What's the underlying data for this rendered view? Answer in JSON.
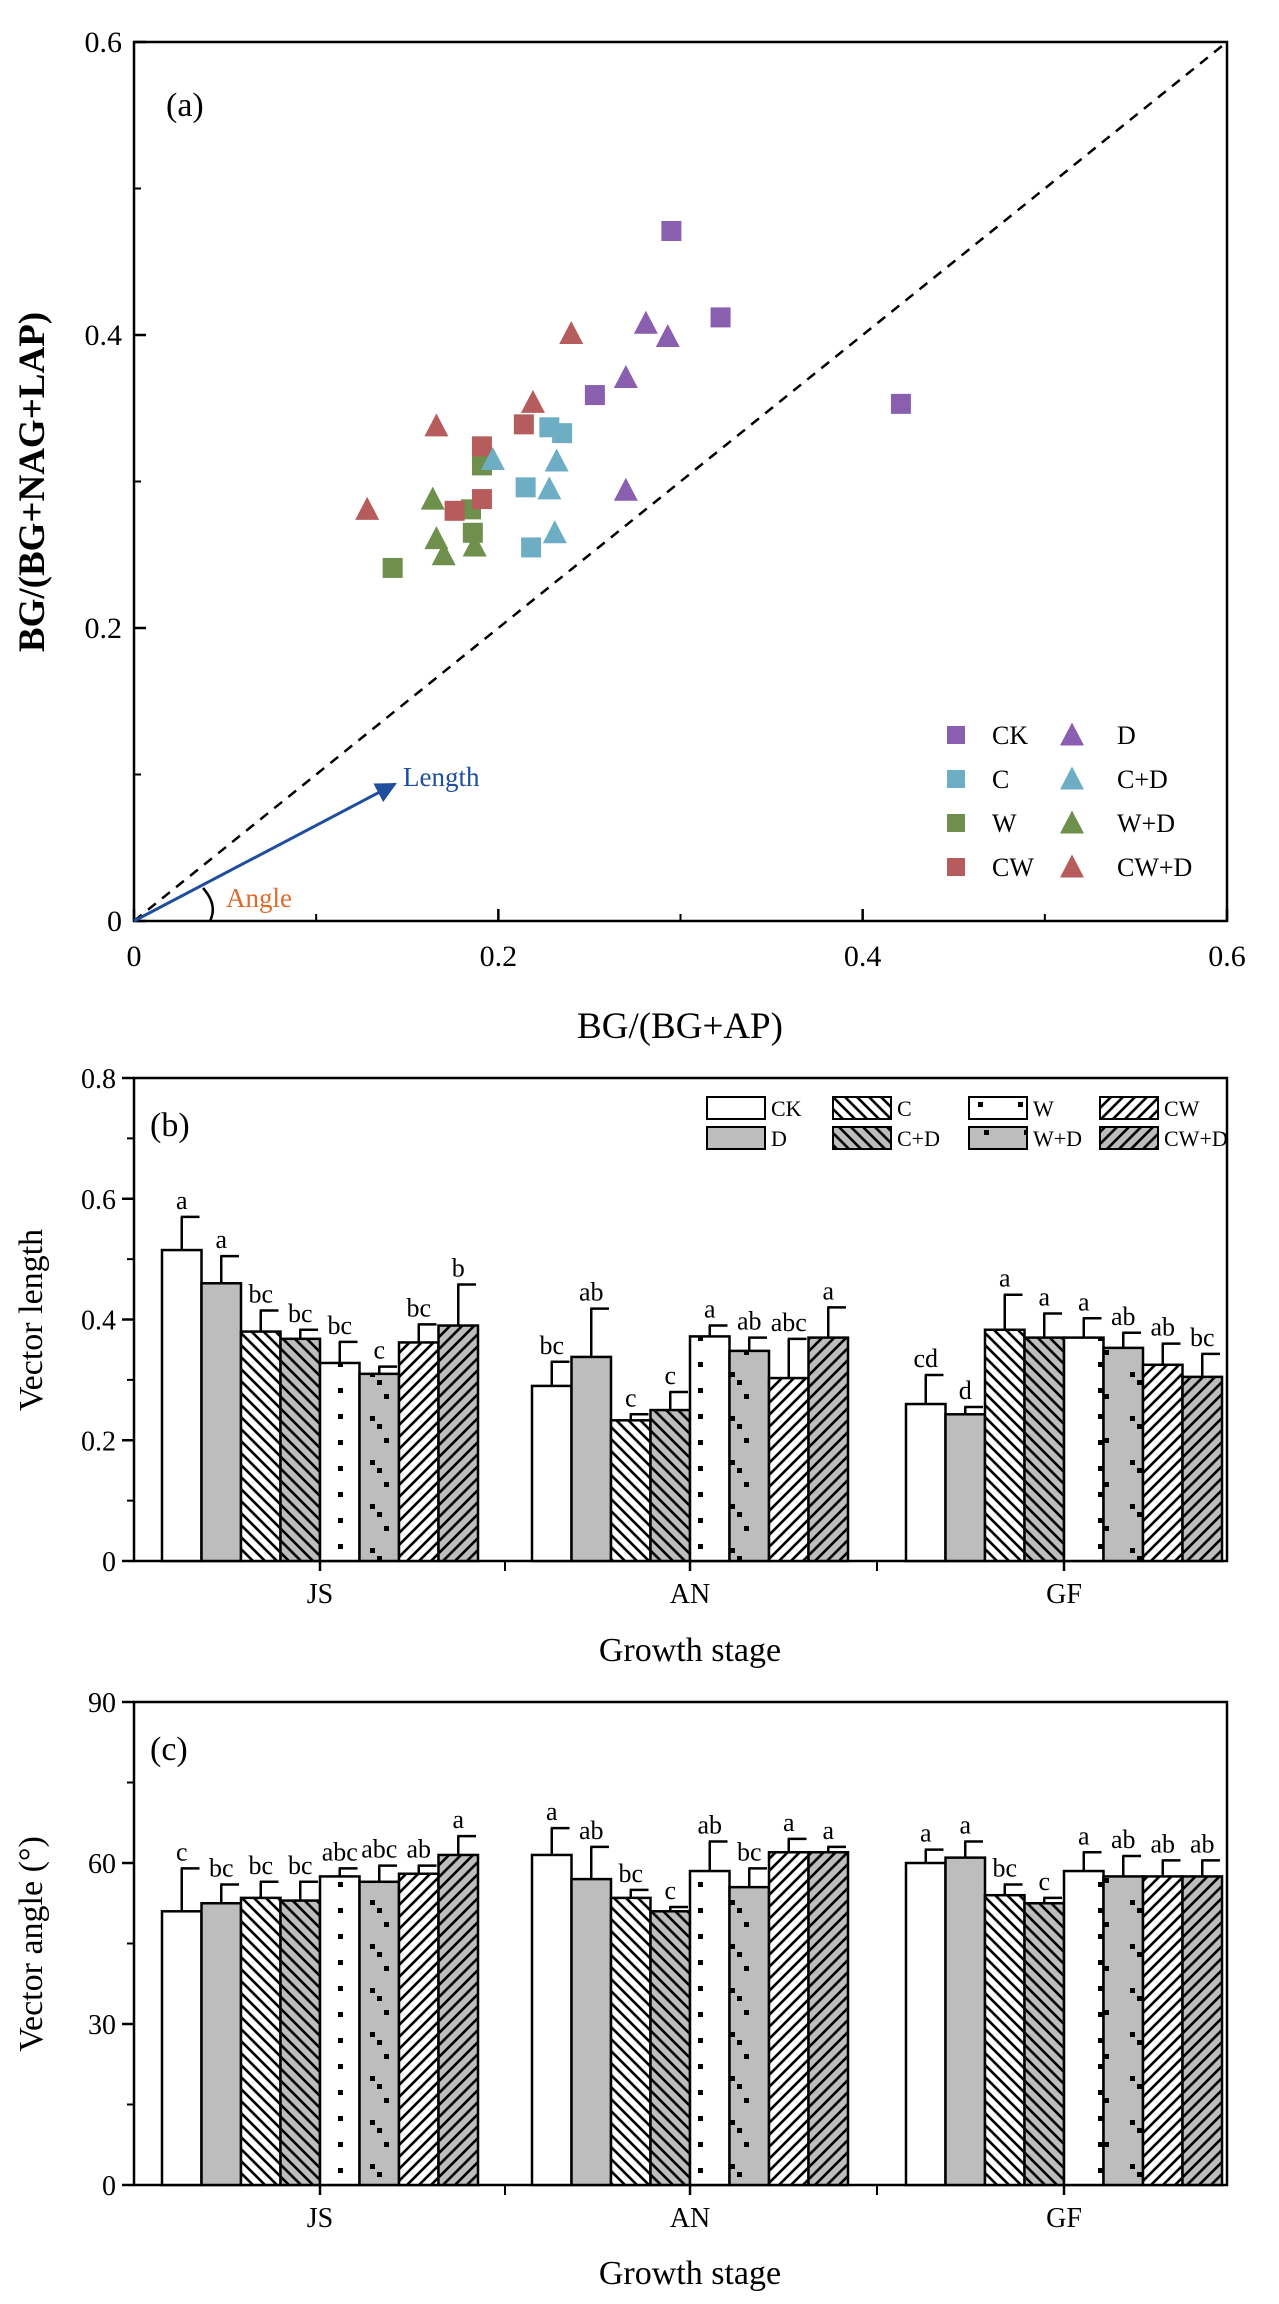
{
  "colors": {
    "CK": "#8a5fb0",
    "C": "#6eaec4",
    "W": "#6f8f4c",
    "CW": "#b65c5c",
    "length_arrow": "#1f4e9e",
    "angle_label": "#e06a2c",
    "bar_white": "#ffffff",
    "bar_grey": "#bdbdbd",
    "axis": "#000000"
  },
  "chart_data": [
    {
      "id": "a",
      "type": "scatter",
      "panel_label": "(a)",
      "xlabel": "BG/(BG+AP)",
      "ylabel": "BG/(BG+NAG+LAP)",
      "xlim": [
        0,
        0.6
      ],
      "ylim": [
        0,
        0.6
      ],
      "xticks": [
        0,
        0.2,
        0.4,
        0.6
      ],
      "xtick_labels": [
        "0",
        "0.2",
        "0.4",
        "0.6"
      ],
      "yticks": [
        0,
        0.2,
        0.4,
        0.6
      ],
      "ytick_labels": [
        "0",
        "0.2",
        "0.4",
        "0.6"
      ],
      "reference_line": "1:1 dashed",
      "annotations": {
        "length": "Length",
        "angle": "Angle"
      },
      "series": [
        {
          "name": "CK",
          "marker": "square",
          "color_key": "CK",
          "points": [
            [
              0.295,
              0.471
            ],
            [
              0.322,
              0.412
            ],
            [
              0.253,
              0.359
            ],
            [
              0.421,
              0.353
            ]
          ]
        },
        {
          "name": "C",
          "marker": "square",
          "color_key": "C",
          "points": [
            [
              0.228,
              0.337
            ],
            [
              0.235,
              0.333
            ],
            [
              0.215,
              0.296
            ],
            [
              0.218,
              0.255
            ]
          ]
        },
        {
          "name": "W",
          "marker": "square",
          "color_key": "W",
          "points": [
            [
              0.191,
              0.311
            ],
            [
              0.185,
              0.281
            ],
            [
              0.186,
              0.265
            ],
            [
              0.142,
              0.241
            ]
          ]
        },
        {
          "name": "CW",
          "marker": "square",
          "color_key": "CW",
          "points": [
            [
              0.191,
              0.324
            ],
            [
              0.214,
              0.339
            ],
            [
              0.191,
              0.288
            ],
            [
              0.176,
              0.28
            ]
          ]
        },
        {
          "name": "D",
          "marker": "triangle",
          "color_key": "CK",
          "points": [
            [
              0.281,
              0.408
            ],
            [
              0.293,
              0.399
            ],
            [
              0.27,
              0.371
            ],
            [
              0.27,
              0.294
            ]
          ]
        },
        {
          "name": "C+D",
          "marker": "triangle",
          "color_key": "C",
          "points": [
            [
              0.197,
              0.315
            ],
            [
              0.232,
              0.314
            ],
            [
              0.228,
              0.295
            ],
            [
              0.231,
              0.265
            ]
          ]
        },
        {
          "name": "W+D",
          "marker": "triangle",
          "color_key": "W",
          "points": [
            [
              0.164,
              0.288
            ],
            [
              0.166,
              0.261
            ],
            [
              0.17,
              0.25
            ],
            [
              0.187,
              0.256
            ]
          ]
        },
        {
          "name": "CW+D",
          "marker": "triangle",
          "color_key": "CW",
          "points": [
            [
              0.24,
              0.401
            ],
            [
              0.219,
              0.354
            ],
            [
              0.166,
              0.338
            ],
            [
              0.128,
              0.281
            ]
          ]
        }
      ]
    },
    {
      "id": "b",
      "type": "bar",
      "panel_label": "(b)",
      "xlabel": "Growth stage",
      "ylabel": "Vector length",
      "ylim": [
        0,
        0.8
      ],
      "yticks": [
        0,
        0.2,
        0.4,
        0.6,
        0.8
      ],
      "ytick_labels": [
        "0",
        "0.2",
        "0.4",
        "0.6",
        "0.8"
      ],
      "categories": [
        "JS",
        "AN",
        "GF"
      ],
      "series": [
        {
          "name": "CK",
          "fill": "white",
          "pattern": "none",
          "values": [
            0.515,
            0.29,
            0.26
          ],
          "errors": [
            0.055,
            0.04,
            0.048
          ],
          "letters": [
            "a",
            "bc",
            "cd"
          ]
        },
        {
          "name": "D",
          "fill": "grey",
          "pattern": "none",
          "values": [
            0.46,
            0.338,
            0.243
          ],
          "errors": [
            0.045,
            0.08,
            0.012
          ],
          "letters": [
            "a",
            "ab",
            "d"
          ]
        },
        {
          "name": "C",
          "fill": "white",
          "pattern": "back",
          "values": [
            0.38,
            0.233,
            0.383
          ],
          "errors": [
            0.035,
            0.01,
            0.058
          ],
          "letters": [
            "bc",
            "c",
            "a"
          ]
        },
        {
          "name": "C+D",
          "fill": "grey",
          "pattern": "back",
          "values": [
            0.368,
            0.25,
            0.37
          ],
          "errors": [
            0.015,
            0.03,
            0.04
          ],
          "letters": [
            "bc",
            "c",
            "a"
          ]
        },
        {
          "name": "W",
          "fill": "white",
          "pattern": "dots",
          "values": [
            0.328,
            0.372,
            0.37
          ],
          "errors": [
            0.035,
            0.018,
            0.032
          ],
          "letters": [
            "bc",
            "a",
            "a"
          ]
        },
        {
          "name": "W+D",
          "fill": "grey",
          "pattern": "dots",
          "values": [
            0.31,
            0.348,
            0.353
          ],
          "errors": [
            0.012,
            0.022,
            0.025
          ],
          "letters": [
            "c",
            "ab",
            "ab"
          ]
        },
        {
          "name": "CW",
          "fill": "white",
          "pattern": "fwd",
          "values": [
            0.362,
            0.303,
            0.325
          ],
          "errors": [
            0.03,
            0.065,
            0.035
          ],
          "letters": [
            "bc",
            "abc",
            "ab"
          ]
        },
        {
          "name": "CW+D",
          "fill": "grey",
          "pattern": "fwd",
          "values": [
            0.39,
            0.37,
            0.305
          ],
          "errors": [
            0.068,
            0.05,
            0.038
          ],
          "letters": [
            "b",
            "a",
            "bc"
          ]
        }
      ]
    },
    {
      "id": "c",
      "type": "bar",
      "panel_label": "(c)",
      "xlabel": "Growth stage",
      "ylabel": "Vector angle (°)",
      "ylim": [
        0,
        90
      ],
      "yticks": [
        0,
        30,
        60,
        90
      ],
      "ytick_labels": [
        "0",
        "30",
        "60",
        "90"
      ],
      "categories": [
        "JS",
        "AN",
        "GF"
      ],
      "series": [
        {
          "name": "CK",
          "fill": "white",
          "pattern": "none",
          "values": [
            51,
            61.5,
            60
          ],
          "errors": [
            8,
            5,
            2.5
          ],
          "letters": [
            "c",
            "a",
            "a"
          ]
        },
        {
          "name": "D",
          "fill": "grey",
          "pattern": "none",
          "values": [
            52.5,
            57,
            61
          ],
          "errors": [
            3.5,
            6,
            3
          ],
          "letters": [
            "bc",
            "ab",
            "a"
          ]
        },
        {
          "name": "C",
          "fill": "white",
          "pattern": "back",
          "values": [
            53.5,
            53.5,
            54
          ],
          "errors": [
            3,
            1.5,
            2
          ],
          "letters": [
            "bc",
            "bc",
            "bc"
          ]
        },
        {
          "name": "C+D",
          "fill": "grey",
          "pattern": "back",
          "values": [
            53,
            51,
            52.5
          ],
          "errors": [
            3.5,
            0.8,
            1
          ],
          "letters": [
            "bc",
            "c",
            "c"
          ]
        },
        {
          "name": "W",
          "fill": "white",
          "pattern": "dots",
          "values": [
            57.5,
            58.5,
            58.5
          ],
          "errors": [
            1.5,
            5.5,
            3.5
          ],
          "letters": [
            "abc",
            "ab",
            "a"
          ]
        },
        {
          "name": "W+D",
          "fill": "grey",
          "pattern": "dots",
          "values": [
            56.5,
            55.5,
            57.5
          ],
          "errors": [
            3,
            3.5,
            3.8
          ],
          "letters": [
            "abc",
            "bc",
            "ab"
          ]
        },
        {
          "name": "CW",
          "fill": "white",
          "pattern": "fwd",
          "values": [
            58,
            62,
            57.5
          ],
          "errors": [
            1.5,
            2.5,
            3
          ],
          "letters": [
            "ab",
            "a",
            "ab"
          ]
        },
        {
          "name": "CW+D",
          "fill": "grey",
          "pattern": "fwd",
          "values": [
            61.5,
            62,
            57.5
          ],
          "errors": [
            3.5,
            1,
            3
          ],
          "letters": [
            "a",
            "a",
            "ab"
          ]
        }
      ]
    }
  ]
}
